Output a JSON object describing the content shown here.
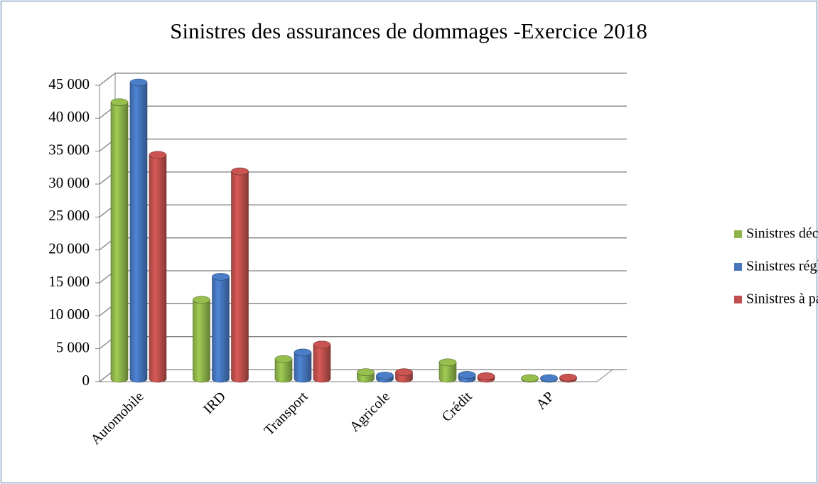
{
  "chart_data": {
    "type": "bar",
    "title": "Sinistres des assurances de dommages -Exercice 2018",
    "categories": [
      "Automobile",
      "IRD",
      "Transport",
      "Agricole",
      "Crédit",
      "AP"
    ],
    "series": [
      {
        "name": "Sinistres déclarés",
        "color": "#8fb64a",
        "values": [
          42000,
          12000,
          3000,
          1000,
          2500,
          100
        ]
      },
      {
        "name": "Sinistres réglés",
        "color": "#4677be",
        "values": [
          45000,
          15500,
          4000,
          500,
          600,
          100
        ]
      },
      {
        "name": "Sinistres à payer",
        "color": "#c0504d",
        "values": [
          34000,
          31500,
          5200,
          1000,
          400,
          200
        ]
      }
    ],
    "ylim": [
      0,
      45000
    ],
    "yticks": [
      0,
      {
        "value": 5000,
        "label": "5 000"
      },
      {
        "value": 10000,
        "label": "10 000"
      },
      {
        "value": 15000,
        "label": "15 000"
      },
      {
        "value": 20000,
        "label": "20 000"
      },
      {
        "value": 25000,
        "label": "25 000"
      },
      {
        "value": 30000,
        "label": "30 000"
      },
      {
        "value": 35000,
        "label": "35 000"
      },
      {
        "value": 40000,
        "label": "40 000"
      },
      {
        "value": 45000,
        "label": "45 000"
      }
    ],
    "grid": true
  }
}
